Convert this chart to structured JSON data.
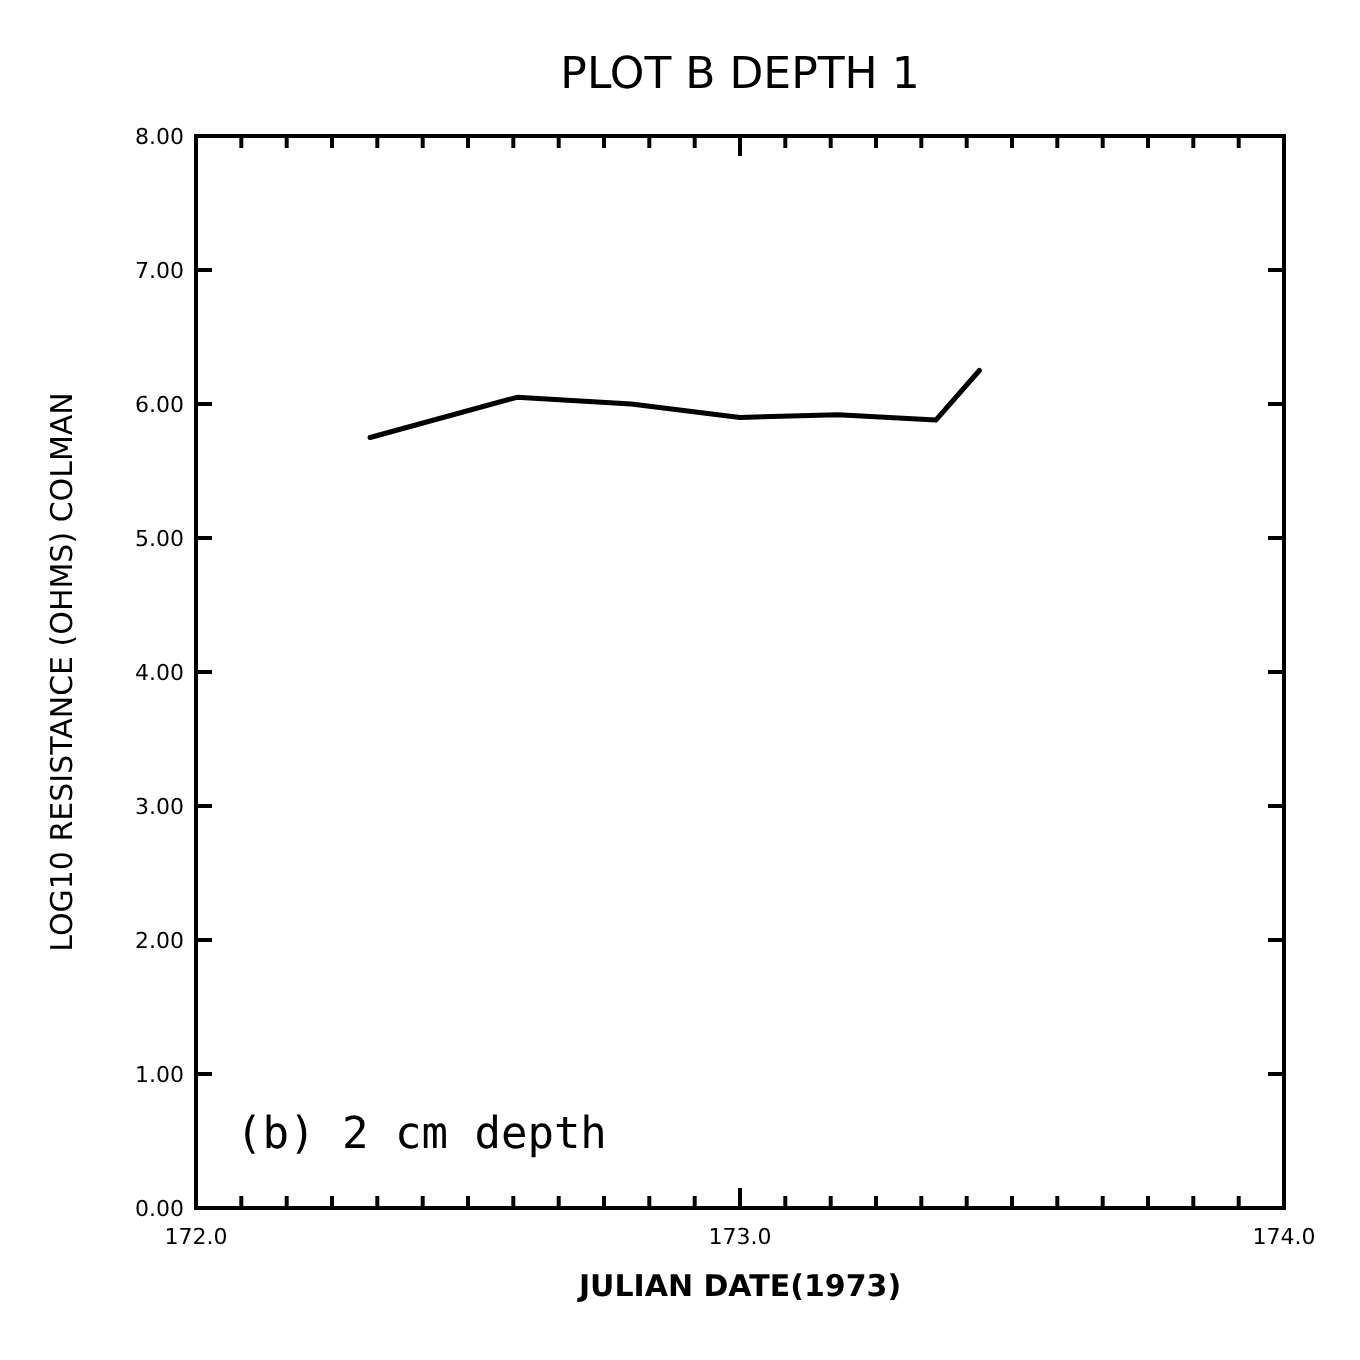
{
  "chart_data": {
    "type": "line",
    "title": "PLOT B  DEPTH 1",
    "xlabel": "JULIAN DATE(1973)",
    "ylabel": "LOG10 RESISTANCE (OHMS) COLMAN",
    "annotations": [
      "(b)  2 cm depth"
    ],
    "x": [
      172.32,
      172.59,
      172.8,
      173.0,
      173.18,
      173.36,
      173.44
    ],
    "series": [
      {
        "color": "#000000",
        "values": [
          5.75,
          6.05,
          6.0,
          5.9,
          5.92,
          5.88,
          6.25
        ]
      }
    ],
    "xlim": [
      172,
      174
    ],
    "ylim": [
      0,
      8
    ],
    "xticks": [
      {
        "value": 172,
        "label": "172.0"
      },
      {
        "value": 172.0833,
        "label": null
      },
      {
        "value": 172.1667,
        "label": null
      },
      {
        "value": 172.25,
        "label": null
      },
      {
        "value": 172.3333,
        "label": null
      },
      {
        "value": 172.4167,
        "label": null
      },
      {
        "value": 172.5,
        "label": null
      },
      {
        "value": 172.5833,
        "label": null
      },
      {
        "value": 172.6667,
        "label": null
      },
      {
        "value": 172.75,
        "label": null
      },
      {
        "value": 172.8333,
        "label": null
      },
      {
        "value": 172.9167,
        "label": null
      },
      {
        "value": 173,
        "label": "173.0"
      },
      {
        "value": 173.0833,
        "label": null
      },
      {
        "value": 173.1667,
        "label": null
      },
      {
        "value": 173.25,
        "label": null
      },
      {
        "value": 173.3333,
        "label": null
      },
      {
        "value": 173.4167,
        "label": null
      },
      {
        "value": 173.5,
        "label": null
      },
      {
        "value": 173.5833,
        "label": null
      },
      {
        "value": 173.6667,
        "label": null
      },
      {
        "value": 173.75,
        "label": null
      },
      {
        "value": 173.8333,
        "label": null
      },
      {
        "value": 173.9167,
        "label": null
      },
      {
        "value": 174,
        "label": "174.0"
      }
    ],
    "yticks": [
      {
        "value": 0,
        "label": "0.00"
      },
      {
        "value": 1,
        "label": "1.00"
      },
      {
        "value": 2,
        "label": "2.00"
      },
      {
        "value": 3,
        "label": "3.00"
      },
      {
        "value": 4,
        "label": "4.00"
      },
      {
        "value": 5,
        "label": "5.00"
      },
      {
        "value": 6,
        "label": "6.00"
      },
      {
        "value": 7,
        "label": "7.00"
      },
      {
        "value": 8,
        "label": "8.00"
      }
    ],
    "grid": false,
    "marker": "none",
    "line_style": "solid"
  }
}
